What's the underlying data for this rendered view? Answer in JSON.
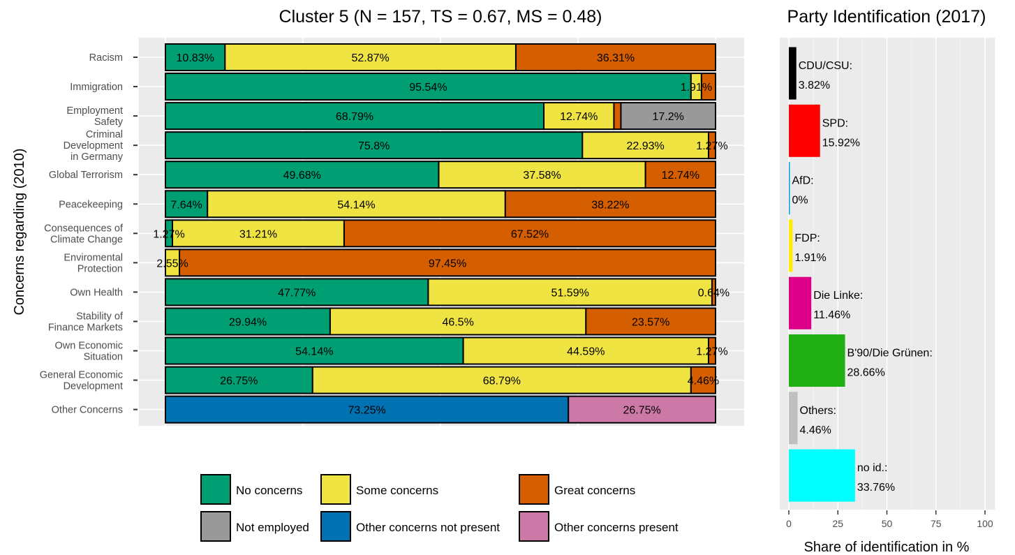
{
  "chart_data": [
    {
      "type": "bar",
      "orientation": "horizontal",
      "stacked": "percent",
      "title": "Cluster 5 (N = 157, TS = 0.67, MS = 0.48)",
      "ylabel": "Concerns regarding (2010)",
      "xlabel": "",
      "xlim": [
        0,
        100
      ],
      "grid": true,
      "legend_position": "bottom",
      "categories": [
        "Racism",
        "Immigration",
        "Employment\nSafety",
        "Criminal\nDevelopment\nin Germany",
        "Global Terrorism",
        "Peacekeeping",
        "Consequences of\nClimate Change",
        "Enviromental\nProtection",
        "Own Health",
        "Stability of\nFinance Markets",
        "Own Economic\nSituation",
        "General Economic\nDevelopment",
        "Other Concerns"
      ],
      "series": [
        {
          "name": "No concerns",
          "color": "#009E73",
          "values": [
            10.83,
            95.54,
            68.79,
            75.8,
            49.68,
            7.64,
            1.27,
            0,
            47.77,
            29.94,
            54.14,
            26.75,
            0
          ],
          "labels": [
            "10.83%",
            "95.54%",
            "68.79%",
            "75.8%",
            "49.68%",
            "7.64%",
            "1.27%",
            "",
            "47.77%",
            "29.94%",
            "54.14%",
            "26.75%",
            ""
          ]
        },
        {
          "name": "Some concerns",
          "color": "#F0E442",
          "values": [
            52.87,
            1.91,
            12.74,
            22.93,
            37.58,
            54.14,
            31.21,
            2.55,
            51.59,
            46.5,
            44.59,
            68.79,
            0
          ],
          "labels": [
            "52.87%",
            "1.91%",
            "12.74%",
            "22.93%",
            "37.58%",
            "54.14%",
            "31.21%",
            "2.55%",
            "51.59%",
            "46.5%",
            "44.59%",
            "68.79%",
            ""
          ]
        },
        {
          "name": "Great concerns",
          "color": "#D55E00",
          "values": [
            36.31,
            2.55,
            1.27,
            1.27,
            12.74,
            38.22,
            67.52,
            97.45,
            0.64,
            23.57,
            1.27,
            4.46,
            0
          ],
          "labels": [
            "36.31%",
            "",
            "",
            "1.27%",
            "12.74%",
            "38.22%",
            "67.52%",
            "97.45%",
            "0.64%",
            "23.57%",
            "1.27%",
            "4.46%",
            ""
          ]
        },
        {
          "name": "Not employed",
          "color": "#999999",
          "values": [
            0,
            0,
            17.2,
            0,
            0,
            0,
            0,
            0,
            0,
            0,
            0,
            0,
            0
          ],
          "labels": [
            "",
            "",
            "17.2%",
            "",
            "",
            "",
            "",
            "",
            "",
            "",
            "",
            "",
            ""
          ]
        },
        {
          "name": "Other concerns not present",
          "color": "#0072B2",
          "values": [
            0,
            0,
            0,
            0,
            0,
            0,
            0,
            0,
            0,
            0,
            0,
            0,
            73.25
          ],
          "labels": [
            "",
            "",
            "",
            "",
            "",
            "",
            "",
            "",
            "",
            "",
            "",
            "",
            "73.25%"
          ]
        },
        {
          "name": "Other concerns present",
          "color": "#CC79A7",
          "values": [
            0,
            0,
            0,
            0,
            0,
            0,
            0,
            0,
            0,
            0,
            0,
            0,
            26.75
          ],
          "labels": [
            "",
            "",
            "",
            "",
            "",
            "",
            "",
            "",
            "",
            "",
            "",
            "",
            "26.75%"
          ]
        }
      ],
      "legend": [
        {
          "label": "No concerns",
          "color": "#009E73"
        },
        {
          "label": "Some concerns",
          "color": "#F0E442"
        },
        {
          "label": "Great concerns",
          "color": "#D55E00"
        },
        {
          "label": "Not employed",
          "color": "#999999"
        },
        {
          "label": "Other concerns not present",
          "color": "#0072B2"
        },
        {
          "label": "Other concerns present",
          "color": "#CC79A7"
        }
      ]
    },
    {
      "type": "bar",
      "orientation": "horizontal",
      "title": "Party Identification (2017)",
      "xlabel": "Share of identification in %",
      "ylabel": "",
      "xlim": [
        0,
        100
      ],
      "xticks": [
        0,
        25,
        50,
        75,
        100
      ],
      "grid": true,
      "categories": [
        "CDU/CSU:",
        "SPD:",
        "AfD:",
        "FDP:",
        "Die Linke:",
        "B'90/Die Grünen:",
        "Others:",
        "no id.:"
      ],
      "values": [
        3.82,
        15.92,
        0,
        1.91,
        11.46,
        28.66,
        4.46,
        33.76
      ],
      "value_labels": [
        "3.82%",
        "15.92%",
        "0%",
        "1.91%",
        "11.46%",
        "28.66%",
        "4.46%",
        "33.76%"
      ],
      "colors": [
        "#000000",
        "#FF0000",
        "#009EE0",
        "#FFED00",
        "#DD0088",
        "#1FAF12",
        "#C0C0C0",
        "#00FFFF"
      ]
    }
  ]
}
